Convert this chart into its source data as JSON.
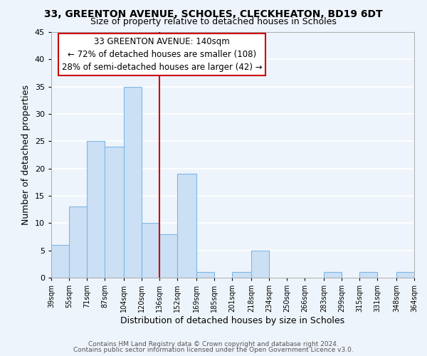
{
  "title_line1": "33, GREENTON AVENUE, SCHOLES, CLECKHEATON, BD19 6DT",
  "title_line2": "Size of property relative to detached houses in Scholes",
  "xlabel": "Distribution of detached houses by size in Scholes",
  "ylabel": "Number of detached properties",
  "bar_color": "#cce0f5",
  "bar_edge_color": "#7ab8e8",
  "vline_color": "#cc0000",
  "vline_x": 136,
  "bins": [
    39,
    55,
    71,
    87,
    104,
    120,
    136,
    152,
    169,
    185,
    201,
    218,
    234,
    250,
    266,
    283,
    299,
    315,
    331,
    348,
    364
  ],
  "bin_labels": [
    "39sqm",
    "55sqm",
    "71sqm",
    "87sqm",
    "104sqm",
    "120sqm",
    "136sqm",
    "152sqm",
    "169sqm",
    "185sqm",
    "201sqm",
    "218sqm",
    "234sqm",
    "250sqm",
    "266sqm",
    "283sqm",
    "299sqm",
    "315sqm",
    "331sqm",
    "348sqm",
    "364sqm"
  ],
  "counts": [
    6,
    13,
    25,
    24,
    35,
    10,
    8,
    19,
    1,
    0,
    1,
    5,
    0,
    0,
    0,
    1,
    0,
    1,
    0,
    1
  ],
  "ylim": [
    0,
    45
  ],
  "yticks": [
    0,
    5,
    10,
    15,
    20,
    25,
    30,
    35,
    40,
    45
  ],
  "annotation_title": "33 GREENTON AVENUE: 140sqm",
  "annotation_line1": "← 72% of detached houses are smaller (108)",
  "annotation_line2": "28% of semi-detached houses are larger (42) →",
  "footer_line1": "Contains HM Land Registry data © Crown copyright and database right 2024.",
  "footer_line2": "Contains public sector information licensed under the Open Government Licence v3.0.",
  "background_color": "#eef4fb",
  "grid_color": "#ffffff",
  "annotation_box_color": "#ffffff",
  "annotation_box_edge": "#cc0000"
}
